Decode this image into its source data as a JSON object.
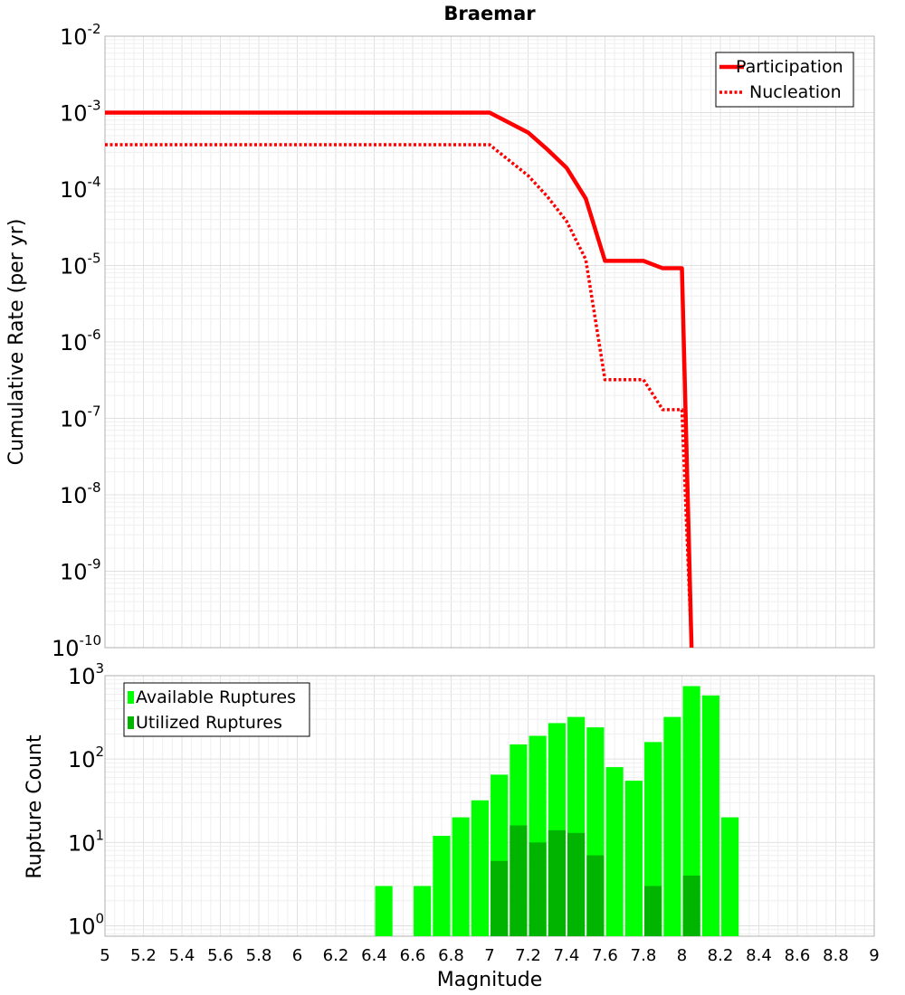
{
  "chart_data": [
    {
      "type": "line",
      "title": "Braemar",
      "xlabel": "",
      "ylabel": "Cumulative Rate (per yr)",
      "xlim": [
        5,
        9
      ],
      "ylim": [
        1e-10,
        0.01
      ],
      "y_scale": "log",
      "grid": true,
      "legend_position": "top-right",
      "y_tick_labels": [
        {
          "base": "10",
          "exp": "-10",
          "value": 1e-10
        },
        {
          "base": "10",
          "exp": "-9",
          "value": 1e-09
        },
        {
          "base": "10",
          "exp": "-8",
          "value": 1e-08
        },
        {
          "base": "10",
          "exp": "-7",
          "value": 1e-07
        },
        {
          "base": "10",
          "exp": "-6",
          "value": 1e-06
        },
        {
          "base": "10",
          "exp": "-5",
          "value": 1e-05
        },
        {
          "base": "10",
          "exp": "-4",
          "value": 0.0001
        },
        {
          "base": "10",
          "exp": "-3",
          "value": 0.001
        },
        {
          "base": "10",
          "exp": "-2",
          "value": 0.01
        }
      ],
      "series": [
        {
          "name": "Participation",
          "color": "#ff0000",
          "style": "solid",
          "x": [
            5.0,
            7.0,
            7.2,
            7.3,
            7.4,
            7.5,
            7.6,
            7.7,
            7.8,
            7.9,
            8.0,
            8.05
          ],
          "y": [
            0.001,
            0.001,
            0.00055,
            0.00033,
            0.00019,
            7.5e-05,
            1.15e-05,
            1.15e-05,
            1.15e-05,
            9.2e-06,
            9.2e-06,
            1e-10
          ]
        },
        {
          "name": "Nucleation",
          "color": "#ff0000",
          "style": "dotted",
          "x": [
            5.0,
            7.0,
            7.2,
            7.3,
            7.4,
            7.5,
            7.6,
            7.7,
            7.8,
            7.9,
            8.0,
            8.05
          ],
          "y": [
            0.00038,
            0.00038,
            0.00015,
            8e-05,
            3.8e-05,
            1.2e-05,
            3.2e-07,
            3.2e-07,
            3.2e-07,
            1.3e-07,
            1.3e-07,
            1e-10
          ]
        }
      ]
    },
    {
      "type": "bar",
      "xlabel": "Magnitude",
      "ylabel": "Rupture Count",
      "xlim": [
        5,
        9
      ],
      "ylim": [
        0.75,
        1000
      ],
      "y_scale": "log",
      "grid": true,
      "legend_position": "top-left",
      "bar_width": 0.09,
      "x_ticks": [
        "5",
        "5.2",
        "5.4",
        "5.6",
        "5.8",
        "6",
        "6.2",
        "6.4",
        "6.6",
        "6.8",
        "7",
        "7.2",
        "7.4",
        "7.6",
        "7.8",
        "8",
        "8.2",
        "8.4",
        "8.6",
        "8.8",
        "9"
      ],
      "y_tick_labels": [
        {
          "base": "10",
          "exp": "0",
          "value": 1
        },
        {
          "base": "10",
          "exp": "1",
          "value": 10
        },
        {
          "base": "10",
          "exp": "2",
          "value": 100
        },
        {
          "base": "10",
          "exp": "3",
          "value": 1000
        }
      ],
      "series": [
        {
          "name": "Available Ruptures",
          "color": "#00ff00",
          "x": [
            6.45,
            6.65,
            6.75,
            6.85,
            6.95,
            7.05,
            7.15,
            7.25,
            7.35,
            7.45,
            7.55,
            7.65,
            7.75,
            7.85,
            7.95,
            8.05,
            8.15,
            8.25
          ],
          "values": [
            3,
            3,
            12,
            20,
            32,
            65,
            150,
            190,
            270,
            320,
            240,
            80,
            55,
            160,
            320,
            750,
            580,
            20
          ]
        },
        {
          "name": "Utilized Ruptures",
          "color": "#00b400",
          "x": [
            7.05,
            7.15,
            7.25,
            7.35,
            7.45,
            7.55,
            7.85,
            8.05
          ],
          "values": [
            6,
            16,
            10,
            14,
            13,
            7,
            3,
            4
          ]
        }
      ]
    }
  ]
}
